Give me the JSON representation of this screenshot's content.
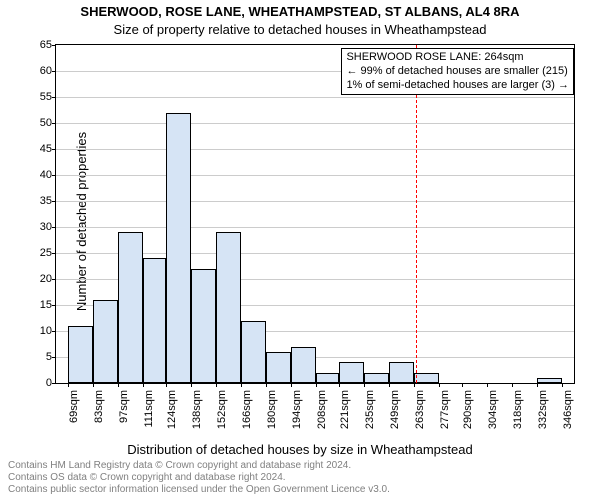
{
  "title": "SHERWOOD, ROSE LANE, WHEATHAMPSTEAD, ST ALBANS, AL4 8RA",
  "subtitle": "Size of property relative to detached houses in Wheathampstead",
  "ylabel": "Number of detached properties",
  "xlabel": "Distribution of detached houses by size in Wheathampstead",
  "footer_line1": "Contains HM Land Registry data © Crown copyright and database right 2024.",
  "footer_line2": "Contains OS data © Crown copyright and database right 2024.",
  "footer_line3": "Contains public sector information licensed under the Open Government Licence v3.0.",
  "annotation": {
    "line1": "SHERWOOD ROSE LANE: 264sqm",
    "line2": "← 99% of detached houses are smaller (215)",
    "line3": "1% of semi-detached houses are larger (3) →"
  },
  "chart": {
    "type": "histogram",
    "background_color": "#ffffff",
    "grid_color": "#cccccc",
    "border_color": "#000000",
    "bar_fill": "#d6e4f5",
    "bar_stroke": "#000000",
    "refline_color": "#ff0000",
    "refline_value": 264,
    "ylim": [
      0,
      65
    ],
    "ytick_step": 5,
    "xlim": [
      62,
      353
    ],
    "x_ticks": [
      69,
      83,
      97,
      111,
      124,
      138,
      152,
      166,
      180,
      194,
      208,
      221,
      235,
      249,
      263,
      277,
      290,
      304,
      318,
      332,
      346
    ],
    "x_tick_labels": [
      "69sqm",
      "83sqm",
      "97sqm",
      "111sqm",
      "124sqm",
      "138sqm",
      "152sqm",
      "166sqm",
      "180sqm",
      "194sqm",
      "208sqm",
      "221sqm",
      "235sqm",
      "249sqm",
      "263sqm",
      "277sqm",
      "290sqm",
      "304sqm",
      "318sqm",
      "332sqm",
      "346sqm"
    ],
    "bars": [
      {
        "x": 69,
        "w": 14,
        "value": 11
      },
      {
        "x": 83,
        "w": 14,
        "value": 16
      },
      {
        "x": 97,
        "w": 14,
        "value": 29
      },
      {
        "x": 111,
        "w": 13,
        "value": 24
      },
      {
        "x": 124,
        "w": 14,
        "value": 52
      },
      {
        "x": 138,
        "w": 14,
        "value": 22
      },
      {
        "x": 152,
        "w": 14,
        "value": 29
      },
      {
        "x": 166,
        "w": 14,
        "value": 12
      },
      {
        "x": 180,
        "w": 14,
        "value": 6
      },
      {
        "x": 194,
        "w": 14,
        "value": 7
      },
      {
        "x": 208,
        "w": 13,
        "value": 2
      },
      {
        "x": 221,
        "w": 14,
        "value": 4
      },
      {
        "x": 235,
        "w": 14,
        "value": 2
      },
      {
        "x": 249,
        "w": 14,
        "value": 4
      },
      {
        "x": 263,
        "w": 14,
        "value": 2
      },
      {
        "x": 332,
        "w": 14,
        "value": 1
      }
    ],
    "title_fontsize": 13,
    "label_fontsize": 13,
    "tick_fontsize": 11,
    "annotation_fontsize": 11
  }
}
